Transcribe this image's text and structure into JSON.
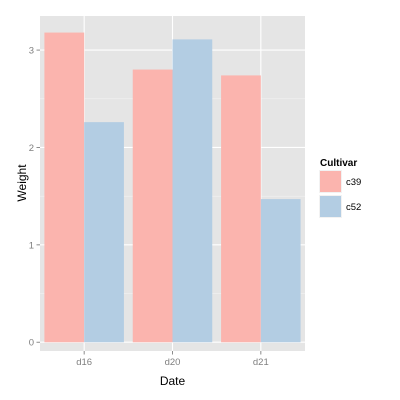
{
  "chart_data": {
    "type": "bar",
    "categories": [
      "d16",
      "d20",
      "d21"
    ],
    "series": [
      {
        "name": "c39",
        "values": [
          3.18,
          2.8,
          2.74
        ],
        "color": "#fbb4ae"
      },
      {
        "name": "c52",
        "values": [
          2.26,
          3.11,
          1.47
        ],
        "color": "#b3cde3"
      }
    ],
    "xlabel": "Date",
    "ylabel": "Weight",
    "ylim": [
      -0.09,
      3.35
    ],
    "yticks": [
      "0",
      "1",
      "2",
      "3"
    ],
    "grid": true,
    "panel_background": "#e5e5e5",
    "grid_color": "#ffffff",
    "legend": {
      "title": "Cultivar",
      "placement": "right"
    }
  }
}
